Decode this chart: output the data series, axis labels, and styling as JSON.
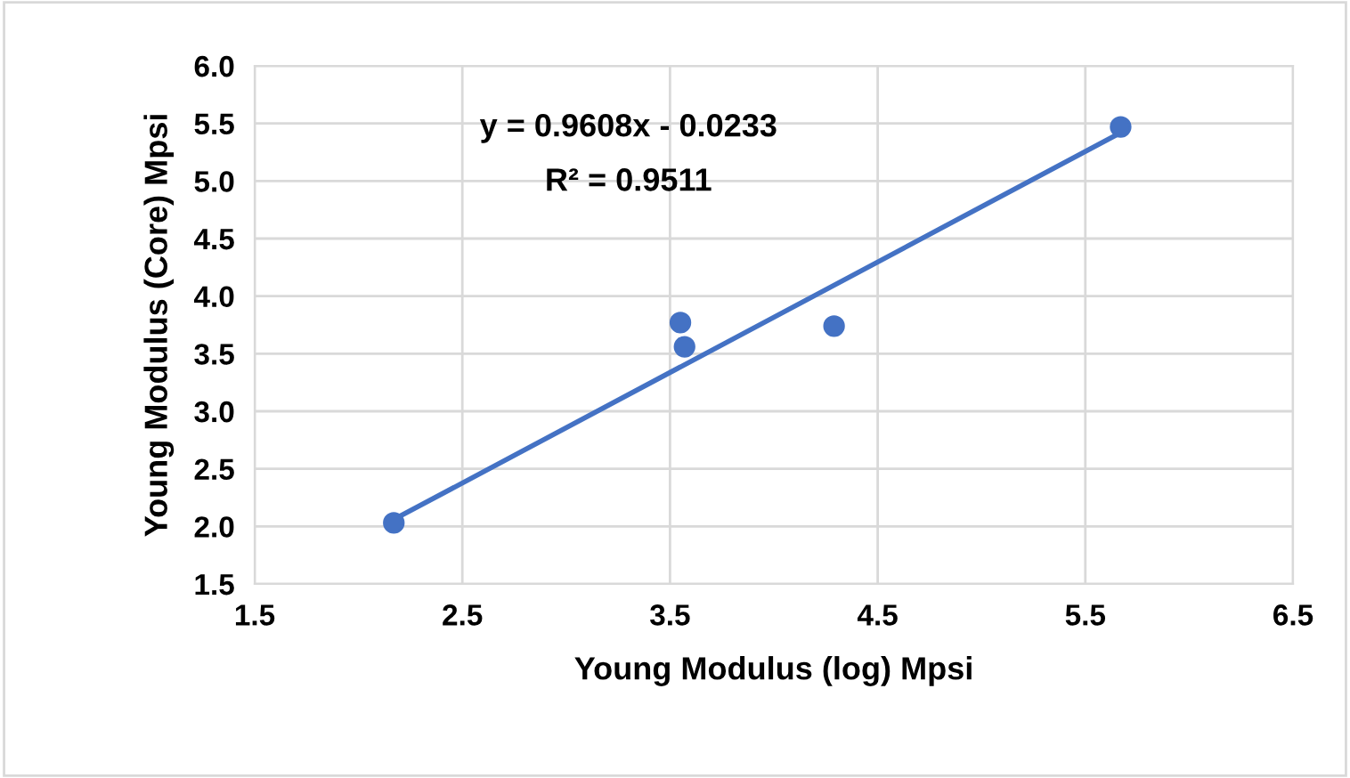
{
  "chart_data": {
    "type": "scatter",
    "xlabel": "Young Modulus (log) Mpsi",
    "ylabel": "Young Modulus (Core) Mpsi",
    "annotations": [
      "y = 0.9608x - 0.0233",
      "R² = 0.9511"
    ],
    "series": [
      {
        "color": "#4472c4",
        "x": [
          2.17,
          3.55,
          3.57,
          4.29,
          5.67
        ],
        "values": [
          2.03,
          3.77,
          3.56,
          3.74,
          5.47
        ],
        "marker": "circle"
      },
      {
        "type": "line",
        "color": "#4472c4",
        "x": [
          2.17,
          5.67
        ],
        "values": [
          2.06,
          5.42
        ],
        "marker": "none"
      }
    ],
    "xlim": [
      1.5,
      6.5
    ],
    "xticks": [
      1.5,
      2.5,
      3.5,
      4.5,
      5.5,
      6.5
    ],
    "ylim": [
      1.5,
      6.0
    ],
    "yticks": [
      {
        "value": 1.5,
        "label": "1.5"
      },
      {
        "value": 2.0,
        "label": "2.0"
      },
      {
        "value": 2.5,
        "label": "2.5"
      },
      {
        "value": 3.0,
        "label": "3.0"
      },
      {
        "value": 3.5,
        "label": "3.5"
      },
      {
        "value": 4.0,
        "label": "4.0"
      },
      {
        "value": 4.5,
        "label": "4.5"
      },
      {
        "value": 5.0,
        "label": "5.0"
      },
      {
        "value": 5.5,
        "label": "5.5"
      },
      {
        "value": 6.0,
        "label": "6.0"
      }
    ],
    "grid": true,
    "legend": false
  }
}
